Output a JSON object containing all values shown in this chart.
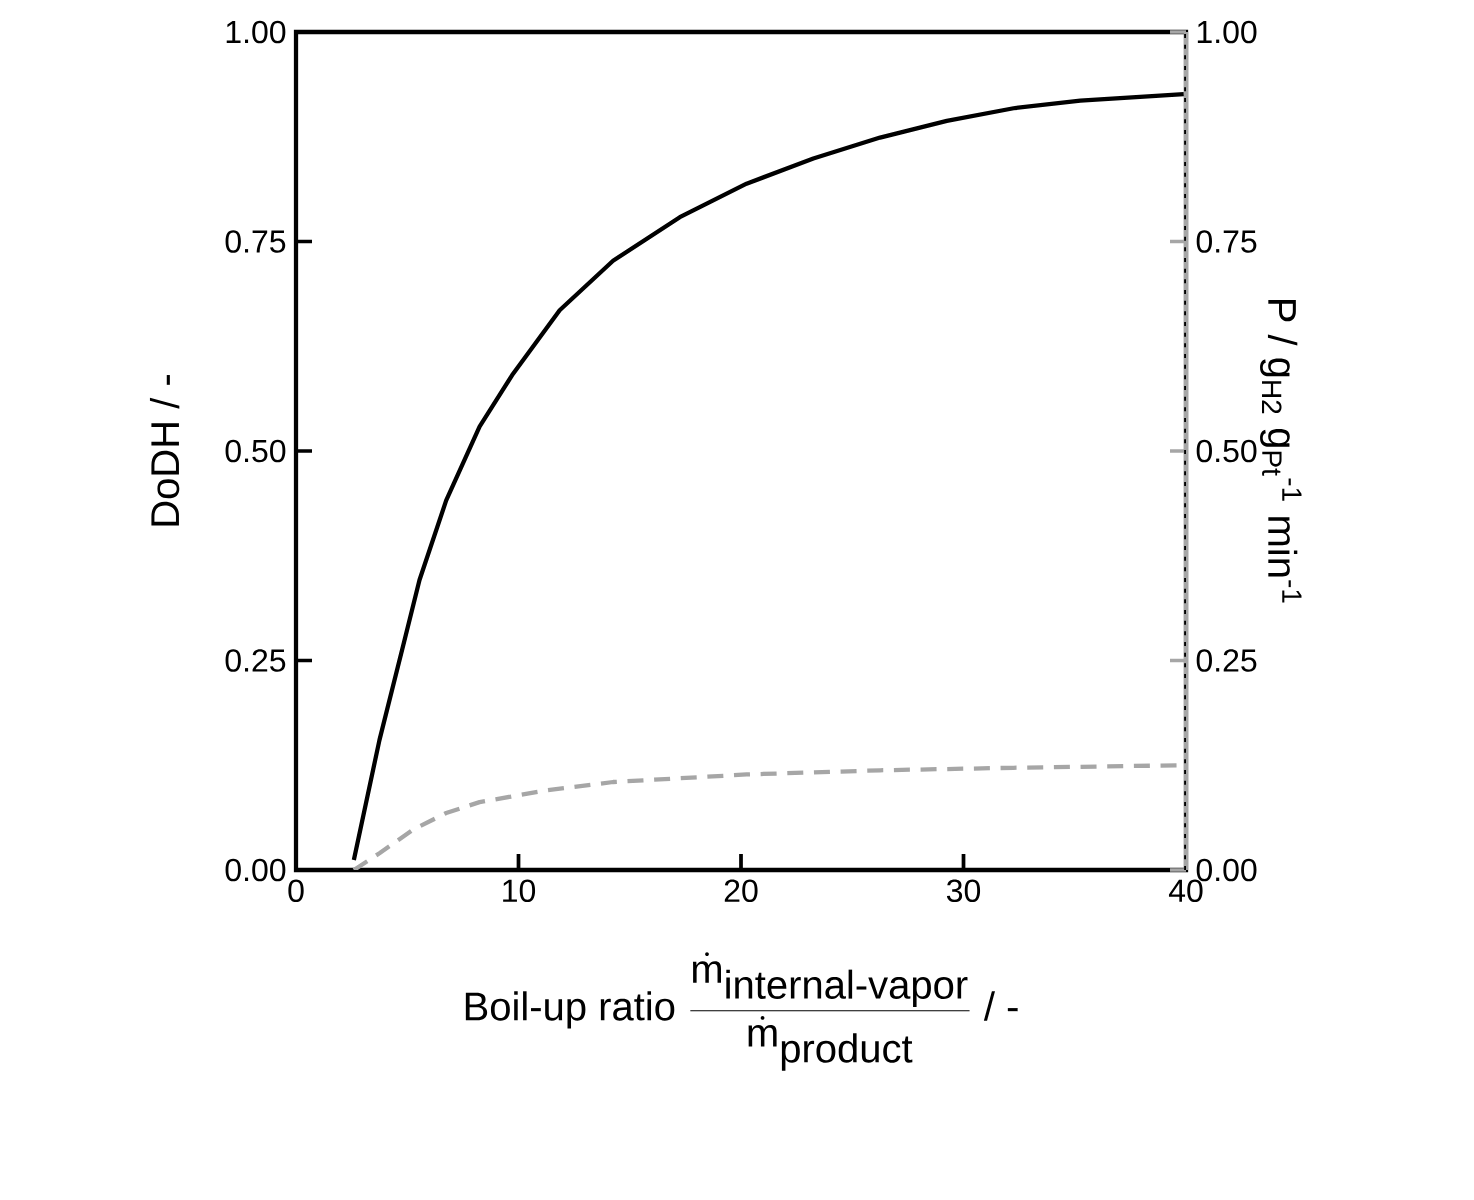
{
  "chart_data": {
    "type": "line",
    "xlabel": "\\mbox{Boil-up ratio }\\frac{\\dot{\\mbox{m}}_{\\mbox{internal-vapor}}}{\\dot{\\mbox{m}}_{\\mbox{product}}}\\mbox{ / -}",
    "ylabel": "DoDH / -",
    "y2label": "P / g$_{H2}$ g$_{Pt}$$^{-1}$ min$^{-1}$",
    "xlim": [
      0,
      40
    ],
    "xticks": [
      0,
      10,
      20,
      30,
      40
    ],
    "ylim": [
      0,
      1
    ],
    "yticks": [
      {
        "value": 0,
        "label": "0.00"
      },
      {
        "value": 0.25,
        "label": "0.25"
      },
      {
        "value": 0.5,
        "label": "0.50"
      },
      {
        "value": 0.75,
        "label": "0.75"
      },
      {
        "value": 1,
        "label": "1.00"
      }
    ],
    "y2lim": [
      0,
      1
    ],
    "y2ticks": [
      {
        "value": 0,
        "label": "0.00"
      },
      {
        "value": 0.25,
        "label": "0.25"
      },
      {
        "value": 0.5,
        "label": "0.50"
      },
      {
        "value": 0.75,
        "label": "0.75"
      },
      {
        "value": 1,
        "label": "1.00"
      }
    ],
    "series": [
      {
        "color": "#000000",
        "line_style": "solid",
        "x": [
          2.6,
          3.75,
          4.8,
          5.55,
          6.75,
          8.25,
          9.75,
          11.85,
          14.25,
          17.25,
          20.25,
          23.25,
          26.25,
          29.25,
          32.25,
          35.25,
          39.9
        ],
        "values": [
          0.012,
          0.155,
          0.266,
          0.346,
          0.441,
          0.529,
          0.592,
          0.668,
          0.727,
          0.779,
          0.819,
          0.849,
          0.874,
          0.894,
          0.909,
          0.918,
          0.926
        ]
      },
      {
        "color": "#a6a6a6",
        "line_style": "dashed",
        "axis": "y2",
        "x": [
          2.6,
          3.75,
          5.25,
          6.75,
          8.25,
          11.25,
          14.25,
          20.25,
          26.25,
          32.25,
          39.9
        ],
        "values": [
          0,
          0.02,
          0.048,
          0.068,
          0.081,
          0.095,
          0.105,
          0.114,
          0.119,
          0.122,
          0.125
        ]
      }
    ],
    "ref_lines": [
      {
        "axis": "x",
        "value": 40,
        "color": "#000000",
        "line_style": "dotted"
      }
    ]
  }
}
